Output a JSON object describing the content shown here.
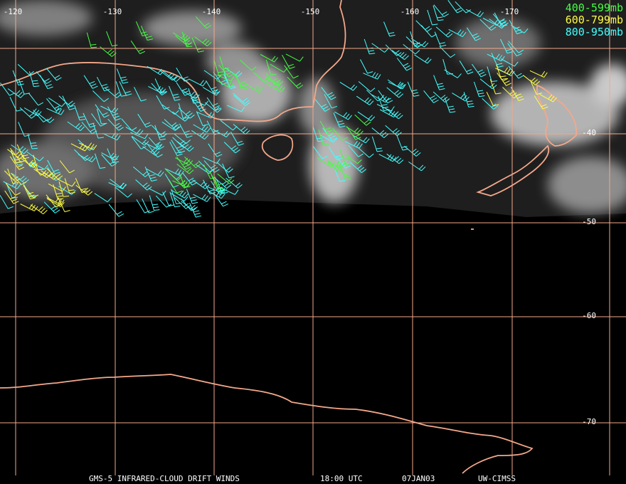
{
  "map": {
    "longitude_labels": [
      "-120",
      "-130",
      "-140",
      "-150",
      "-160",
      "-170"
    ],
    "latitude_labels": [
      "-40",
      "-50",
      "-60",
      "-70"
    ],
    "legend": [
      "400-599mb",
      "600-799mb",
      "800-950mb"
    ],
    "footer": {
      "product": "GMS-5 INFRARED-CLOUD DRIFT WINDS",
      "time": "18:00 UTC",
      "date": "07JAN03",
      "source": "UW-CIMSS"
    }
  }
}
